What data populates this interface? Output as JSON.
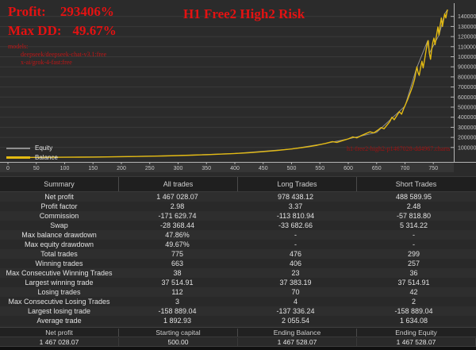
{
  "header": {
    "profit_label": "Profit:",
    "profit_value": "293406%",
    "maxdd_label": "Max DD:",
    "maxdd_value": "49.67%",
    "title": "H1 Free2 High2 Risk",
    "models_label": "models:",
    "models": [
      "deepseek/deepseek-chat-v3.1:free",
      "x-ai/grok-4-fast:free"
    ],
    "accent_red": "#e31212"
  },
  "chart_data": {
    "type": "line",
    "title": "H1 Free2 High2 Risk",
    "xlabel": "",
    "ylabel": "",
    "xlim": [
      0,
      790
    ],
    "ylim": [
      0,
      1480000
    ],
    "x_ticks": [
      0,
      50,
      100,
      150,
      200,
      250,
      300,
      350,
      400,
      450,
      500,
      550,
      600,
      650,
      700,
      750
    ],
    "y_ticks": [
      100000,
      200000,
      300000,
      400000,
      500000,
      600000,
      700000,
      800000,
      900000,
      1000000,
      1100000,
      1200000,
      1300000,
      1400000
    ],
    "grid": "horizontal",
    "legend_position": "bottom-left",
    "watermark": "h1-free2-high2-p1467028-dd4967.charts",
    "legend": [
      {
        "label": "Equity",
        "color": "#8f8f8f"
      },
      {
        "label": "Balance",
        "color": "#e3ba12"
      }
    ],
    "series": [
      {
        "name": "Equity",
        "color": "#8f8f8f",
        "width": 1,
        "points": [
          [
            0,
            500
          ],
          [
            100,
            2800
          ],
          [
            200,
            8300
          ],
          [
            300,
            19500
          ],
          [
            400,
            40000
          ],
          [
            500,
            85000
          ],
          [
            560,
            140000
          ],
          [
            600,
            185000
          ],
          [
            650,
            250000
          ],
          [
            700,
            510000
          ],
          [
            720,
            880000
          ],
          [
            740,
            1160000
          ],
          [
            743,
            1035000
          ],
          [
            760,
            1215000
          ],
          [
            770,
            1425000
          ],
          [
            775,
            1467528
          ]
        ]
      },
      {
        "name": "Balance",
        "color": "#e3ba12",
        "width": 1.4,
        "points": [
          [
            0,
            500
          ],
          [
            25,
            900
          ],
          [
            50,
            1400
          ],
          [
            75,
            2000
          ],
          [
            100,
            2800
          ],
          [
            125,
            3800
          ],
          [
            150,
            5000
          ],
          [
            175,
            6500
          ],
          [
            200,
            8300
          ],
          [
            225,
            10500
          ],
          [
            250,
            13000
          ],
          [
            275,
            16000
          ],
          [
            300,
            19500
          ],
          [
            325,
            23500
          ],
          [
            350,
            28000
          ],
          [
            375,
            33500
          ],
          [
            400,
            40000
          ],
          [
            425,
            48000
          ],
          [
            450,
            58000
          ],
          [
            475,
            70000
          ],
          [
            500,
            85000
          ],
          [
            515,
            96000
          ],
          [
            530,
            108000
          ],
          [
            545,
            122000
          ],
          [
            560,
            140000
          ],
          [
            572,
            158000
          ],
          [
            580,
            150000
          ],
          [
            590,
            168000
          ],
          [
            600,
            185000
          ],
          [
            608,
            205000
          ],
          [
            615,
            195000
          ],
          [
            622,
            215000
          ],
          [
            630,
            235000
          ],
          [
            638,
            255000
          ],
          [
            645,
            245000
          ],
          [
            652,
            272000
          ],
          [
            658,
            298000
          ],
          [
            663,
            285000
          ],
          [
            668,
            320000
          ],
          [
            673,
            355000
          ],
          [
            677,
            400000
          ],
          [
            681,
            375000
          ],
          [
            686,
            420000
          ],
          [
            690,
            455000
          ],
          [
            694,
            430000
          ],
          [
            698,
            490000
          ],
          [
            702,
            540000
          ],
          [
            705,
            580000
          ],
          [
            708,
            625000
          ],
          [
            711,
            670000
          ],
          [
            714,
            720000
          ],
          [
            717,
            780000
          ],
          [
            719,
            840000
          ],
          [
            721,
            900000
          ],
          [
            723,
            845000
          ],
          [
            725,
            815000
          ],
          [
            728,
            905000
          ],
          [
            730,
            955000
          ],
          [
            732,
            890000
          ],
          [
            735,
            985000
          ],
          [
            737,
            1060000
          ],
          [
            739,
            1125000
          ],
          [
            741,
            1160000
          ],
          [
            743,
            1035000
          ],
          [
            745,
            975000
          ],
          [
            747,
            1070000
          ],
          [
            749,
            1140000
          ],
          [
            751,
            1185000
          ],
          [
            753,
            1120000
          ],
          [
            756,
            1225000
          ],
          [
            758,
            1295000
          ],
          [
            760,
            1215000
          ],
          [
            762,
            1310000
          ],
          [
            764,
            1385000
          ],
          [
            766,
            1300000
          ],
          [
            768,
            1365000
          ],
          [
            770,
            1425000
          ],
          [
            772,
            1385000
          ],
          [
            774,
            1445000
          ],
          [
            775,
            1467528
          ]
        ]
      }
    ]
  },
  "table": {
    "headers": [
      "Summary",
      "All trades",
      "Long Trades",
      "Short Trades"
    ],
    "rows": [
      [
        "Net profit",
        "1 467 028.07",
        "978 438.12",
        "488 589.95"
      ],
      [
        "Profit factor",
        "2.98",
        "3.37",
        "2.48"
      ],
      [
        "Commission",
        "-171 629.74",
        "-113 810.94",
        "-57 818.80"
      ],
      [
        "Swap",
        "-28 368.44",
        "-33 682.66",
        "5 314.22"
      ],
      [
        "Max balance drawdown",
        "47.86%",
        "-",
        "-"
      ],
      [
        "Max equity drawdown",
        "49.67%",
        "-",
        "-"
      ],
      [
        "Total trades",
        "775",
        "476",
        "299"
      ],
      [
        "Winning trades",
        "663",
        "406",
        "257"
      ],
      [
        "Max Consecutive Winning Trades",
        "38",
        "23",
        "36"
      ],
      [
        "Largest winning trade",
        "37 514.91",
        "37 383.19",
        "37 514.91"
      ],
      [
        "Losing trades",
        "112",
        "70",
        "42"
      ],
      [
        "Max Consecutive Losing Trades",
        "3",
        "4",
        "2"
      ],
      [
        "Largest losing trade",
        "-158 889.04",
        "-137 336.24",
        "-158 889.04"
      ],
      [
        "Average trade",
        "1 892.93",
        "2 055.54",
        "1 634.08"
      ]
    ]
  },
  "footer": {
    "columns": [
      {
        "label": "Net profit",
        "value": "1 467 028.07"
      },
      {
        "label": "Starting capital",
        "value": "500.00"
      },
      {
        "label": "Ending Balance",
        "value": "1 467 528.07"
      },
      {
        "label": "Ending Equity",
        "value": "1 467 528.07"
      }
    ]
  },
  "colors": {
    "background": "#2b2b2b",
    "axis_strip": "#363636",
    "grid_line": "#3a3a3a",
    "axis_line": "#b5b5b5",
    "tick_text": "#c8c8c8",
    "balance": "#e3ba12",
    "equity": "#8f8f8f",
    "annotation_red": "#e31212"
  }
}
